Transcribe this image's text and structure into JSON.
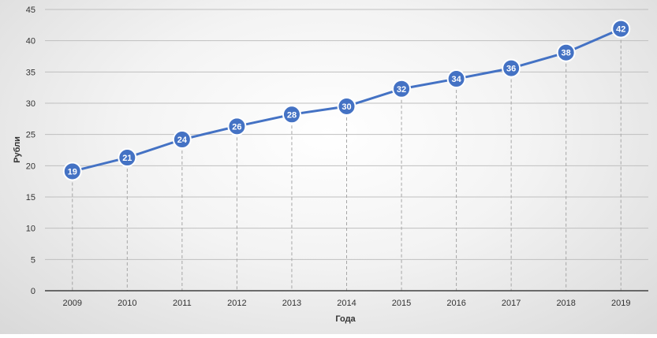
{
  "chart_data": {
    "type": "line",
    "title": "",
    "xlabel": "Года",
    "ylabel": "Рубли",
    "categories": [
      "2009",
      "2010",
      "2011",
      "2012",
      "2013",
      "2014",
      "2015",
      "2016",
      "2017",
      "2018",
      "2019"
    ],
    "series": [
      {
        "values": [
          19.1,
          21.3,
          24.2,
          26.3,
          28.2,
          29.5,
          32.3,
          33.9,
          35.6,
          38.1,
          41.9
        ],
        "labels": [
          "19",
          "21",
          "24",
          "26",
          "28",
          "30",
          "32",
          "34",
          "36",
          "38",
          "42"
        ]
      }
    ],
    "ylim": [
      0,
      45
    ],
    "yticks": [
      "0",
      "5",
      "10",
      "15",
      "20",
      "25",
      "30",
      "35",
      "40",
      "45"
    ],
    "grid": true,
    "drop_lines": true,
    "legend": "none",
    "colors": {
      "line": "#4472C4",
      "marker_fill": "#4472C4",
      "marker_stroke": "#ffffff",
      "gridline": "#bfbfbf",
      "axis_line": "#404040",
      "drop_line": "#a6a6a6"
    }
  }
}
